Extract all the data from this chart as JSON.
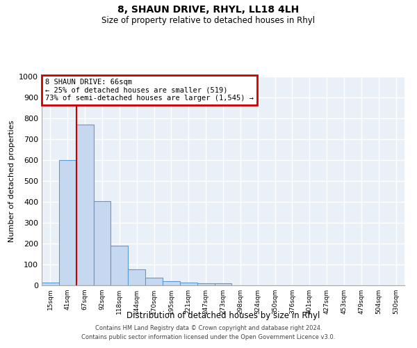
{
  "title": "8, SHAUN DRIVE, RHYL, LL18 4LH",
  "subtitle": "Size of property relative to detached houses in Rhyl",
  "xlabel": "Distribution of detached houses by size in Rhyl",
  "ylabel": "Number of detached properties",
  "bar_labels": [
    "15sqm",
    "41sqm",
    "67sqm",
    "92sqm",
    "118sqm",
    "144sqm",
    "170sqm",
    "195sqm",
    "221sqm",
    "247sqm",
    "273sqm",
    "298sqm",
    "324sqm",
    "350sqm",
    "376sqm",
    "401sqm",
    "427sqm",
    "453sqm",
    "479sqm",
    "504sqm",
    "530sqm"
  ],
  "bar_heights": [
    15,
    600,
    770,
    405,
    190,
    78,
    38,
    20,
    13,
    10,
    10,
    0,
    0,
    0,
    0,
    0,
    0,
    0,
    0,
    0,
    0
  ],
  "bar_color": "#c5d8f0",
  "bar_edge_color": "#5b9bd5",
  "property_line_x": 1.5,
  "property_line_color": "#cc0000",
  "annotation_text": "8 SHAUN DRIVE: 66sqm\n← 25% of detached houses are smaller (519)\n73% of semi-detached houses are larger (1,545) →",
  "annotation_box_color": "#cc0000",
  "annotation_text_color": "#000000",
  "ylim": [
    0,
    1000
  ],
  "yticks": [
    0,
    100,
    200,
    300,
    400,
    500,
    600,
    700,
    800,
    900,
    1000
  ],
  "background_color": "#eaf0f8",
  "grid_color": "#ffffff",
  "footer_line1": "Contains HM Land Registry data © Crown copyright and database right 2024.",
  "footer_line2": "Contains public sector information licensed under the Open Government Licence v3.0."
}
